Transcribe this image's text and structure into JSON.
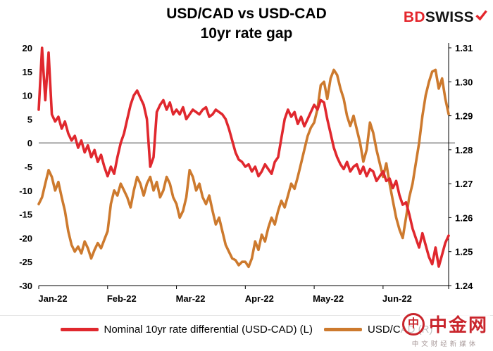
{
  "title_line1": "USD/CAD vs USD-CAD",
  "title_line2": "10yr rate gap",
  "logo": {
    "bd": "BD",
    "swiss": "SWISS"
  },
  "watermark": {
    "mark": "中",
    "name": "中金网",
    "tagline": "中文财经新媒体"
  },
  "colors": {
    "series_red": "#e0282e",
    "series_orange": "#cd7a2e",
    "zero_line": "#808080",
    "brand_red": "#e4262c",
    "watermark_red": "#c9252c"
  },
  "chart_data": {
    "type": "line",
    "title": "USD/CAD vs USD-CAD 10yr rate gap",
    "legend_position": "bottom",
    "grid": false,
    "zero_line": true,
    "x_ticks": [
      "Jan-22",
      "Feb-22",
      "Mar-22",
      "Apr-22",
      "May-22",
      "Jun-22"
    ],
    "points_per_month": 21,
    "left_axis": {
      "min": -30,
      "max": 20,
      "ticks": [
        20,
        15,
        10,
        5,
        0,
        -5,
        -10,
        -15,
        -20,
        -25,
        -30
      ]
    },
    "right_axis": {
      "min": 1.24,
      "max": 1.31,
      "tick_labels": [
        "1.31",
        "1.30",
        "1.29",
        "1.28",
        "1.27",
        "1.26",
        "1.25",
        "1.24"
      ]
    },
    "series": [
      {
        "name": "Nominal 10yr rate differential (USD-CAD) (L)",
        "axis": "left",
        "color": "#e0282e",
        "values": [
          7,
          20,
          9,
          19,
          6,
          4.5,
          5.5,
          3,
          4.5,
          2,
          0.5,
          1.5,
          -1,
          0.5,
          -2,
          -0.5,
          -3,
          -1.5,
          -4,
          -2.5,
          -5,
          -7,
          -5,
          -6.5,
          -3,
          0,
          2,
          5,
          8,
          10,
          11,
          9.5,
          8,
          5,
          -5,
          -3,
          6.5,
          8,
          9,
          7,
          8.5,
          6,
          7,
          6,
          7.5,
          5,
          6,
          7,
          6.5,
          6,
          7,
          7.5,
          5.5,
          6,
          7,
          6.5,
          6,
          5,
          3,
          0.5,
          -2,
          -3.5,
          -4,
          -5,
          -4.5,
          -6,
          -5,
          -7,
          -6,
          -4.5,
          -5.5,
          -6.5,
          -4,
          -3,
          1,
          5,
          7,
          5.5,
          6.5,
          4,
          5.5,
          3.5,
          5,
          6.5,
          8,
          7,
          9,
          8.5,
          5,
          2,
          -1,
          -3,
          -4.5,
          -5.5,
          -4,
          -6,
          -5,
          -4.5,
          -6.5,
          -5,
          -7,
          -5.5,
          -6,
          -8,
          -7,
          -6,
          -8,
          -7.5,
          -9.5,
          -8,
          -11,
          -13,
          -12.5,
          -15,
          -18,
          -20,
          -22,
          -19,
          -21.5,
          -24,
          -25.5,
          -22,
          -26,
          -23.5,
          -21,
          -19.5
        ]
      },
      {
        "name": "USD/CAD (R)",
        "axis": "right",
        "color": "#cd7a2e",
        "values": [
          1.264,
          1.266,
          1.27,
          1.274,
          1.272,
          1.268,
          1.2705,
          1.266,
          1.262,
          1.256,
          1.252,
          1.25,
          1.2515,
          1.2495,
          1.253,
          1.251,
          1.248,
          1.2505,
          1.2525,
          1.251,
          1.2535,
          1.256,
          1.264,
          1.268,
          1.2665,
          1.27,
          1.268,
          1.266,
          1.263,
          1.268,
          1.272,
          1.27,
          1.2665,
          1.27,
          1.272,
          1.268,
          1.2705,
          1.266,
          1.268,
          1.272,
          1.27,
          1.266,
          1.264,
          1.26,
          1.262,
          1.266,
          1.274,
          1.272,
          1.268,
          1.27,
          1.266,
          1.264,
          1.2665,
          1.262,
          1.258,
          1.26,
          1.256,
          1.252,
          1.25,
          1.248,
          1.2475,
          1.246,
          1.247,
          1.247,
          1.2455,
          1.248,
          1.253,
          1.2505,
          1.255,
          1.253,
          1.257,
          1.26,
          1.258,
          1.262,
          1.265,
          1.263,
          1.2665,
          1.27,
          1.2685,
          1.272,
          1.276,
          1.28,
          1.284,
          1.2865,
          1.288,
          1.292,
          1.299,
          1.3,
          1.295,
          1.301,
          1.3035,
          1.302,
          1.298,
          1.295,
          1.29,
          1.287,
          1.29,
          1.286,
          1.282,
          1.2765,
          1.28,
          1.288,
          1.285,
          1.28,
          1.276,
          1.272,
          1.276,
          1.27,
          1.265,
          1.26,
          1.2565,
          1.254,
          1.26,
          1.266,
          1.27,
          1.276,
          1.282,
          1.29,
          1.296,
          1.3,
          1.303,
          1.3035,
          1.298,
          1.301,
          1.295,
          1.2905
        ]
      }
    ]
  }
}
